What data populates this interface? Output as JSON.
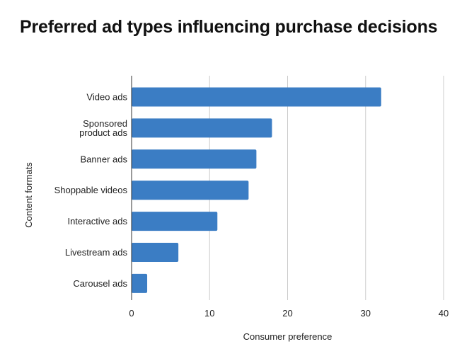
{
  "chart_data": {
    "type": "bar",
    "orientation": "horizontal",
    "title": "Preferred ad types influencing purchase decisions",
    "xlabel": "Consumer preference",
    "ylabel": "Content formats",
    "categories": [
      [
        "Video ads"
      ],
      [
        "Sponsored",
        "product ads"
      ],
      [
        "Banner ads"
      ],
      [
        "Shoppable videos"
      ],
      [
        "Interactive ads"
      ],
      [
        "Livestream ads"
      ],
      [
        "Carousel ads"
      ]
    ],
    "values": [
      32,
      18,
      16,
      15,
      11,
      6,
      2
    ],
    "xlim": [
      0,
      40
    ],
    "xticks": [
      0,
      10,
      20,
      30,
      40
    ],
    "grid": "vertical",
    "bar_color": "#3b7dc4"
  }
}
